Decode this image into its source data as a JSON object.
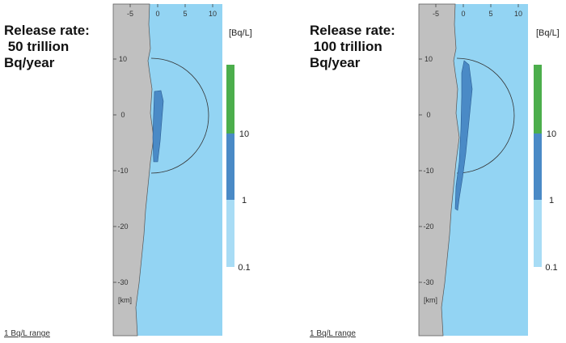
{
  "panels": [
    {
      "title": [
        "Release rate:",
        " 50 trillion",
        "Bq/year"
      ],
      "x_ticks": [
        -5,
        0,
        5,
        10
      ],
      "y_ticks": [
        10,
        0,
        -10,
        -20,
        -30
      ],
      "axis_unit": "[km]",
      "legend_unit": "[Bq/L]",
      "legend_labels": [
        10,
        1,
        0.1
      ],
      "footnote": "1 Bq/L range"
    },
    {
      "title": [
        "Release rate:",
        " 100 trillion",
        "Bq/year"
      ],
      "x_ticks": [
        -5,
        0,
        5,
        10
      ],
      "y_ticks": [
        10,
        0,
        -10,
        -20,
        -30
      ],
      "axis_unit": "[km]",
      "legend_unit": "[Bq/L]",
      "legend_labels": [
        10,
        1,
        0.1
      ],
      "footnote": "1 Bq/L range"
    }
  ]
}
